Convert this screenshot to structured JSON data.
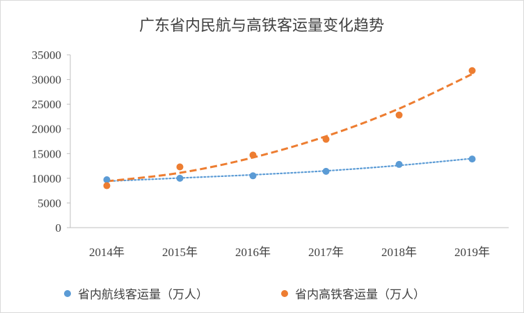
{
  "chart_data": {
    "type": "scatter",
    "title": "广东省内民航与高铁客运量变化趋势",
    "categories": [
      "2014年",
      "2015年",
      "2016年",
      "2017年",
      "2018年",
      "2019年"
    ],
    "ylim": [
      0,
      35000
    ],
    "yticks": [
      0,
      5000,
      10000,
      15000,
      20000,
      25000,
      30000,
      35000
    ],
    "grid": false,
    "legend_position": "bottom",
    "series": [
      {
        "name": "省内航线客运量（万人）",
        "color": "#5b9bd5",
        "values": [
          9700,
          10000,
          10500,
          11400,
          12800,
          13900
        ],
        "trendline": {
          "style": "dotted",
          "values": [
            9400,
            10050,
            10700,
            11500,
            12600,
            14000
          ]
        }
      },
      {
        "name": "省内高铁客运量（万人）",
        "color": "#ed7d31",
        "values": [
          8500,
          12300,
          14700,
          17900,
          22800,
          31800
        ],
        "trendline": {
          "style": "dashed",
          "values": [
            9400,
            11100,
            14200,
            18500,
            24100,
            31100
          ]
        }
      }
    ]
  }
}
